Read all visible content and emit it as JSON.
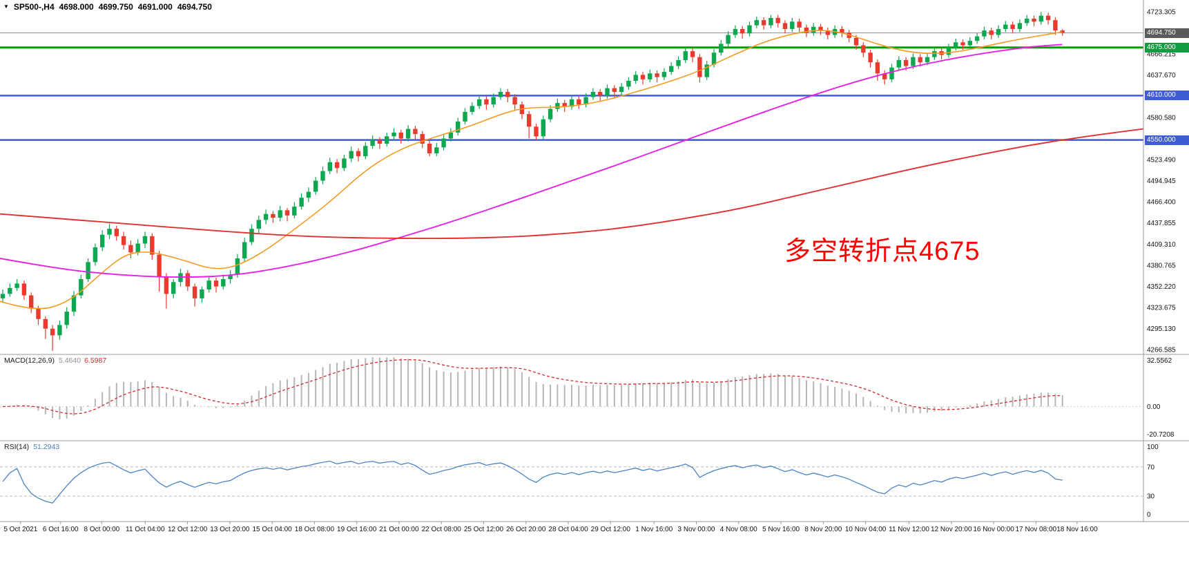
{
  "header": {
    "marker_icon": "▼",
    "symbol": "SP500-,H4",
    "open": "4698.000",
    "high": "4699.750",
    "low": "4691.000",
    "close": "4694.750"
  },
  "annotation": {
    "text": "多空转折点4675",
    "color": "#ff0000"
  },
  "chart_data": {
    "type": "candlestick",
    "symbol": "SP500-,H4",
    "timeframe": "H4",
    "up_color": "#0ca74f",
    "down_color": "#e83b2e",
    "price_axis": {
      "max": 4739.2,
      "min": 4260.2,
      "ticks": [
        "4723.305",
        "4694.760",
        "4666.215",
        "4637.670",
        "4609.125",
        "4580.580",
        "4552.035",
        "4523.490",
        "4494.945",
        "4466.400",
        "4437.855",
        "4409.310",
        "4380.765",
        "4352.220",
        "4323.675",
        "4295.130",
        "4266.585"
      ]
    },
    "levels": [
      {
        "label": "4694.750",
        "value": 4694.75,
        "line_color": "#8a8a8a",
        "tag_color": "#5a5a5a",
        "width": 1,
        "type": "current-price"
      },
      {
        "label": "4675.000",
        "value": 4675.0,
        "line_color": "#00a000",
        "tag_color": "#0f9d3f",
        "width": 3,
        "type": "horizontal-line"
      },
      {
        "label": "4610.000",
        "value": 4610.0,
        "line_color": "#3f5bd5",
        "tag_color": "#3f5bd5",
        "width": 2.5,
        "type": "horizontal-line"
      },
      {
        "label": "4550.000",
        "value": 4550.0,
        "line_color": "#3f5bd5",
        "tag_color": "#3f5bd5",
        "width": 2.5,
        "type": "horizontal-line"
      }
    ],
    "candles": [
      [
        4336,
        4348,
        4330,
        4342
      ],
      [
        4342,
        4356,
        4338,
        4350
      ],
      [
        4350,
        4362,
        4346,
        4356
      ],
      [
        4356,
        4360,
        4334,
        4340
      ],
      [
        4340,
        4344,
        4316,
        4322
      ],
      [
        4322,
        4326,
        4300,
        4308
      ],
      [
        4308,
        4312,
        4281,
        4295
      ],
      [
        4295,
        4300,
        4265,
        4286
      ],
      [
        4286,
        4306,
        4280,
        4300
      ],
      [
        4300,
        4324,
        4295,
        4318
      ],
      [
        4318,
        4346,
        4312,
        4340
      ],
      [
        4340,
        4368,
        4336,
        4362
      ],
      [
        4362,
        4390,
        4358,
        4385
      ],
      [
        4385,
        4410,
        4380,
        4405
      ],
      [
        4405,
        4428,
        4400,
        4422
      ],
      [
        4422,
        4437,
        4416,
        4430
      ],
      [
        4430,
        4434,
        4414,
        4420
      ],
      [
        4420,
        4426,
        4402,
        4408
      ],
      [
        4408,
        4414,
        4390,
        4398
      ],
      [
        4398,
        4416,
        4394,
        4410
      ],
      [
        4410,
        4426,
        4404,
        4420
      ],
      [
        4420,
        4424,
        4388,
        4395
      ],
      [
        4395,
        4400,
        4345,
        4365
      ],
      [
        4365,
        4370,
        4322,
        4342
      ],
      [
        4342,
        4362,
        4336,
        4358
      ],
      [
        4358,
        4376,
        4352,
        4370
      ],
      [
        4370,
        4374,
        4346,
        4352
      ],
      [
        4352,
        4356,
        4325,
        4336
      ],
      [
        4336,
        4352,
        4330,
        4348
      ],
      [
        4348,
        4366,
        4344,
        4360
      ],
      [
        4360,
        4364,
        4344,
        4352
      ],
      [
        4352,
        4368,
        4348,
        4362
      ],
      [
        4362,
        4374,
        4356,
        4368
      ],
      [
        4368,
        4396,
        4364,
        4390
      ],
      [
        4390,
        4418,
        4386,
        4412
      ],
      [
        4412,
        4436,
        4408,
        4430
      ],
      [
        4430,
        4448,
        4424,
        4442
      ],
      [
        4442,
        4456,
        4436,
        4450
      ],
      [
        4450,
        4454,
        4438,
        4445
      ],
      [
        4445,
        4461,
        4440,
        4455
      ],
      [
        4455,
        4458,
        4440,
        4448
      ],
      [
        4448,
        4466,
        4444,
        4460
      ],
      [
        4460,
        4478,
        4456,
        4472
      ],
      [
        4472,
        4486,
        4466,
        4480
      ],
      [
        4480,
        4500,
        4476,
        4495
      ],
      [
        4495,
        4514,
        4490,
        4508
      ],
      [
        4508,
        4526,
        4504,
        4520
      ],
      [
        4520,
        4524,
        4505,
        4512
      ],
      [
        4512,
        4530,
        4508,
        4525
      ],
      [
        4525,
        4541,
        4520,
        4535
      ],
      [
        4535,
        4539,
        4521,
        4528
      ],
      [
        4528,
        4547,
        4524,
        4542
      ],
      [
        4542,
        4556,
        4538,
        4550
      ],
      [
        4550,
        4554,
        4538,
        4545
      ],
      [
        4545,
        4560,
        4541,
        4555
      ],
      [
        4555,
        4566,
        4550,
        4560
      ],
      [
        4560,
        4564,
        4545,
        4552
      ],
      [
        4552,
        4570,
        4548,
        4565
      ],
      [
        4565,
        4569,
        4551,
        4558
      ],
      [
        4558,
        4562,
        4539,
        4545
      ],
      [
        4545,
        4549,
        4528,
        4532
      ],
      [
        4532,
        4546,
        4528,
        4540
      ],
      [
        4540,
        4557,
        4536,
        4552
      ],
      [
        4552,
        4566,
        4548,
        4560
      ],
      [
        4560,
        4580,
        4556,
        4575
      ],
      [
        4575,
        4593,
        4571,
        4588
      ],
      [
        4588,
        4601,
        4584,
        4596
      ],
      [
        4596,
        4610,
        4592,
        4605
      ],
      [
        4605,
        4609,
        4591,
        4598
      ],
      [
        4598,
        4613,
        4594,
        4608
      ],
      [
        4608,
        4620,
        4604,
        4615
      ],
      [
        4615,
        4619,
        4601,
        4608
      ],
      [
        4608,
        4612,
        4591,
        4598
      ],
      [
        4598,
        4602,
        4578,
        4585
      ],
      [
        4585,
        4589,
        4552,
        4568
      ],
      [
        4568,
        4572,
        4550,
        4555
      ],
      [
        4555,
        4583,
        4551,
        4578
      ],
      [
        4578,
        4597,
        4574,
        4592
      ],
      [
        4592,
        4606,
        4588,
        4600
      ],
      [
        4600,
        4604,
        4588,
        4595
      ],
      [
        4595,
        4610,
        4591,
        4605
      ],
      [
        4605,
        4609,
        4592,
        4598
      ],
      [
        4598,
        4613,
        4594,
        4608
      ],
      [
        4608,
        4620,
        4604,
        4615
      ],
      [
        4615,
        4619,
        4603,
        4610
      ],
      [
        4610,
        4625,
        4606,
        4620
      ],
      [
        4620,
        4624,
        4608,
        4615
      ],
      [
        4615,
        4627,
        4611,
        4622
      ],
      [
        4622,
        4635,
        4618,
        4630
      ],
      [
        4630,
        4643,
        4626,
        4638
      ],
      [
        4638,
        4642,
        4625,
        4632
      ],
      [
        4632,
        4645,
        4628,
        4640
      ],
      [
        4640,
        4644,
        4628,
        4635
      ],
      [
        4635,
        4647,
        4631,
        4642
      ],
      [
        4642,
        4655,
        4638,
        4650
      ],
      [
        4650,
        4663,
        4646,
        4658
      ],
      [
        4658,
        4675,
        4654,
        4670
      ],
      [
        4670,
        4674,
        4655,
        4662
      ],
      [
        4662,
        4666,
        4628,
        4635
      ],
      [
        4635,
        4657,
        4631,
        4652
      ],
      [
        4652,
        4673,
        4648,
        4668
      ],
      [
        4668,
        4685,
        4664,
        4680
      ],
      [
        4680,
        4697,
        4676,
        4692
      ],
      [
        4692,
        4705,
        4688,
        4700
      ],
      [
        4700,
        4704,
        4687,
        4694
      ],
      [
        4694,
        4710,
        4690,
        4705
      ],
      [
        4705,
        4717,
        4701,
        4712
      ],
      [
        4712,
        4716,
        4699,
        4705
      ],
      [
        4705,
        4719,
        4701,
        4715
      ],
      [
        4715,
        4719,
        4702,
        4708
      ],
      [
        4708,
        4712,
        4694,
        4700
      ],
      [
        4700,
        4715,
        4696,
        4710
      ],
      [
        4710,
        4714,
        4696,
        4702
      ],
      [
        4702,
        4706,
        4689,
        4695
      ],
      [
        4695,
        4708,
        4691,
        4703
      ],
      [
        4703,
        4707,
        4692,
        4698
      ],
      [
        4698,
        4702,
        4686,
        4692
      ],
      [
        4692,
        4705,
        4688,
        4700
      ],
      [
        4700,
        4704,
        4689,
        4695
      ],
      [
        4695,
        4699,
        4682,
        4688
      ],
      [
        4688,
        4692,
        4672,
        4678
      ],
      [
        4678,
        4682,
        4662,
        4668
      ],
      [
        4668,
        4672,
        4648,
        4655
      ],
      [
        4655,
        4659,
        4630,
        4640
      ],
      [
        4640,
        4644,
        4625,
        4632
      ],
      [
        4632,
        4653,
        4628,
        4648
      ],
      [
        4648,
        4663,
        4644,
        4658
      ],
      [
        4658,
        4662,
        4644,
        4650
      ],
      [
        4650,
        4667,
        4646,
        4662
      ],
      [
        4662,
        4666,
        4649,
        4655
      ],
      [
        4655,
        4667,
        4651,
        4662
      ],
      [
        4662,
        4675,
        4658,
        4670
      ],
      [
        4670,
        4674,
        4659,
        4665
      ],
      [
        4665,
        4680,
        4661,
        4675
      ],
      [
        4675,
        4687,
        4671,
        4682
      ],
      [
        4682,
        4686,
        4672,
        4678
      ],
      [
        4678,
        4689,
        4674,
        4684
      ],
      [
        4684,
        4695,
        4680,
        4690
      ],
      [
        4690,
        4703,
        4686,
        4698
      ],
      [
        4698,
        4702,
        4686,
        4692
      ],
      [
        4692,
        4705,
        4688,
        4700
      ],
      [
        4700,
        4711,
        4696,
        4706
      ],
      [
        4706,
        4710,
        4694,
        4700
      ],
      [
        4700,
        4713,
        4696,
        4708
      ],
      [
        4708,
        4719,
        4704,
        4714
      ],
      [
        4714,
        4718,
        4704,
        4710
      ],
      [
        4710,
        4723,
        4706,
        4718
      ],
      [
        4718,
        4722,
        4706,
        4712
      ],
      [
        4712,
        4716,
        4692,
        4698
      ],
      [
        4698,
        4699.75,
        4691,
        4694.75
      ]
    ],
    "moving_averages": [
      {
        "name": "ma-fast-orange",
        "color": "#f59a23",
        "width": 1.6,
        "points": [
          [
            0,
            4332
          ],
          [
            0.03,
            4318
          ],
          [
            0.06,
            4330
          ],
          [
            0.09,
            4372
          ],
          [
            0.11,
            4396
          ],
          [
            0.13,
            4400
          ],
          [
            0.16,
            4388
          ],
          [
            0.185,
            4375
          ],
          [
            0.205,
            4378
          ],
          [
            0.23,
            4398
          ],
          [
            0.26,
            4432
          ],
          [
            0.29,
            4468
          ],
          [
            0.32,
            4510
          ],
          [
            0.35,
            4538
          ],
          [
            0.38,
            4554
          ],
          [
            0.41,
            4568
          ],
          [
            0.44,
            4586
          ],
          [
            0.46,
            4594
          ],
          [
            0.49,
            4594
          ],
          [
            0.52,
            4600
          ],
          [
            0.55,
            4612
          ],
          [
            0.58,
            4626
          ],
          [
            0.61,
            4642
          ],
          [
            0.64,
            4664
          ],
          [
            0.67,
            4684
          ],
          [
            0.7,
            4696
          ],
          [
            0.72,
            4699
          ],
          [
            0.74,
            4694
          ],
          [
            0.77,
            4678
          ],
          [
            0.8,
            4667
          ],
          [
            0.83,
            4667
          ],
          [
            0.86,
            4676
          ],
          [
            0.89,
            4686
          ],
          [
            0.929,
            4696
          ]
        ]
      },
      {
        "name": "ma-mid-magenta",
        "color": "#e620e6",
        "width": 1.9,
        "points": [
          [
            0,
            4390
          ],
          [
            0.05,
            4376
          ],
          [
            0.1,
            4368
          ],
          [
            0.15,
            4364
          ],
          [
            0.2,
            4366
          ],
          [
            0.25,
            4378
          ],
          [
            0.3,
            4396
          ],
          [
            0.35,
            4418
          ],
          [
            0.4,
            4442
          ],
          [
            0.45,
            4468
          ],
          [
            0.5,
            4495
          ],
          [
            0.55,
            4522
          ],
          [
            0.6,
            4550
          ],
          [
            0.65,
            4578
          ],
          [
            0.7,
            4605
          ],
          [
            0.75,
            4630
          ],
          [
            0.8,
            4650
          ],
          [
            0.85,
            4665
          ],
          [
            0.9,
            4676
          ],
          [
            0.929,
            4679
          ]
        ]
      },
      {
        "name": "ma-slow-red",
        "color": "#e03030",
        "width": 1.9,
        "points": [
          [
            0,
            4450
          ],
          [
            0.05,
            4444
          ],
          [
            0.1,
            4438
          ],
          [
            0.15,
            4432
          ],
          [
            0.2,
            4426
          ],
          [
            0.25,
            4421
          ],
          [
            0.3,
            4418
          ],
          [
            0.35,
            4417
          ],
          [
            0.4,
            4417
          ],
          [
            0.45,
            4419
          ],
          [
            0.5,
            4424
          ],
          [
            0.55,
            4432
          ],
          [
            0.6,
            4444
          ],
          [
            0.65,
            4458
          ],
          [
            0.7,
            4476
          ],
          [
            0.75,
            4494
          ],
          [
            0.8,
            4512
          ],
          [
            0.85,
            4528
          ],
          [
            0.9,
            4543
          ],
          [
            0.95,
            4555
          ],
          [
            1,
            4565
          ]
        ]
      }
    ],
    "indicators": [
      {
        "id": "macd",
        "label": "MACD(12,26,9)",
        "values": [
          "5.4640",
          "6.5987"
        ],
        "fast": 12,
        "slow": 26,
        "signal": 9,
        "axis_max": 32.5562,
        "axis_min": -20.7208,
        "axis_ticks": [
          "32.5562",
          "0.00",
          "-20.7208"
        ],
        "hist_color": "#b6b6b6",
        "signal_color": "#d22a2a"
      },
      {
        "id": "rsi",
        "label": "RSI(14)",
        "value": "51.2943",
        "period": 14,
        "levels": [
          70,
          30
        ],
        "axis_ticks": [
          "100",
          "70",
          "30",
          "0"
        ],
        "line_color": "#4a82c4"
      }
    ],
    "x_axis": {
      "labels": [
        "5 Oct 2021",
        "6 Oct 16:00",
        "8 Oct 00:00",
        "11 Oct 04:00",
        "12 Oct 12:00",
        "13 Oct 20:00",
        "15 Oct 04:00",
        "18 Oct 08:00",
        "19 Oct 16:00",
        "21 Oct 00:00",
        "22 Oct 08:00",
        "25 Oct 12:00",
        "26 Oct 20:00",
        "28 Oct 04:00",
        "29 Oct 12:00",
        "1 Nov 16:00",
        "3 Nov 00:00",
        "4 Nov 08:00",
        "5 Nov 16:00",
        "8 Nov 20:00",
        "10 Nov 04:00",
        "11 Nov 12:00",
        "12 Nov 20:00",
        "16 Nov 00:00",
        "17 Nov 08:00",
        "18 Nov 16:00"
      ],
      "fracs": [
        0.018,
        0.053,
        0.089,
        0.127,
        0.164,
        0.201,
        0.238,
        0.275,
        0.312,
        0.349,
        0.386,
        0.423,
        0.46,
        0.497,
        0.534,
        0.572,
        0.609,
        0.646,
        0.683,
        0.72,
        0.757,
        0.795,
        0.832,
        0.869,
        0.906,
        0.942
      ]
    }
  }
}
